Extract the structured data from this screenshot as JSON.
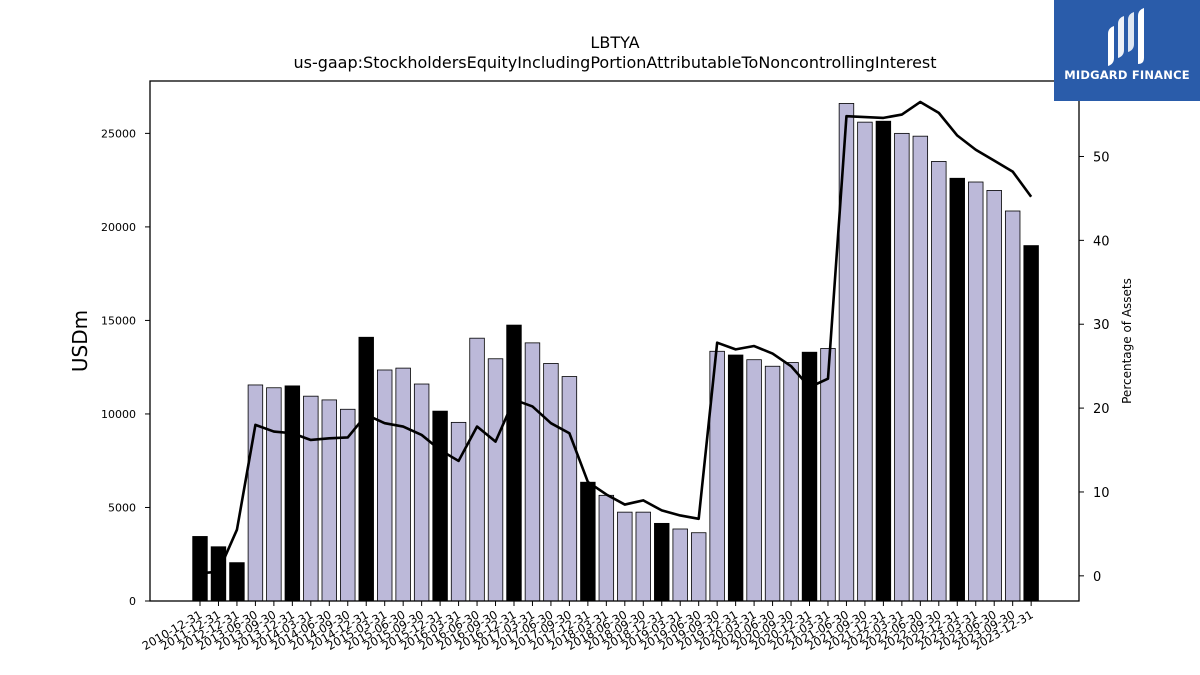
{
  "chart_data": {
    "type": "bar",
    "title": "LBTYA",
    "subtitle": "us-gaap:StockholdersEquityIncludingPortionAttributableToNoncontrollingInterest",
    "ylabel": "USDm",
    "y2label": "Percentage of Assets",
    "ylim": [
      0,
      27800
    ],
    "y2lim": [
      -3,
      59
    ],
    "yticks": [
      0,
      5000,
      10000,
      15000,
      20000,
      25000
    ],
    "y2ticks": [
      0,
      10,
      20,
      30,
      40,
      50
    ],
    "categories": [
      "2010-12-31",
      "2011-12-31",
      "2012-12-31",
      "2013-06-30",
      "2013-09-30",
      "2013-12-31",
      "2014-03-31",
      "2014-06-30",
      "2014-09-30",
      "2014-12-31",
      "2015-03-31",
      "2015-06-30",
      "2015-09-30",
      "2015-12-31",
      "2016-03-31",
      "2016-06-30",
      "2016-09-30",
      "2016-12-31",
      "2017-03-31",
      "2017-06-30",
      "2017-09-30",
      "2017-12-31",
      "2018-03-31",
      "2018-06-30",
      "2018-09-30",
      "2018-12-31",
      "2019-03-31",
      "2019-06-30",
      "2019-09-30",
      "2019-12-31",
      "2020-03-31",
      "2020-06-30",
      "2020-09-30",
      "2020-12-31",
      "2021-03-31",
      "2021-06-30",
      "2021-09-30",
      "2021-12-31",
      "2022-03-31",
      "2022-06-30",
      "2022-09-30",
      "2022-12-31",
      "2023-03-31",
      "2023-06-30",
      "2023-09-30",
      "2023-12-31"
    ],
    "series": [
      {
        "type": "bar",
        "axis": "left",
        "values": [
          3450,
          2900,
          2050,
          11550,
          11400,
          11500,
          10950,
          10750,
          10250,
          14100,
          12350,
          12450,
          11600,
          10150,
          9550,
          14050,
          12950,
          14750,
          13800,
          12700,
          12000,
          6350,
          5650,
          4750,
          4750,
          4150,
          3850,
          3650,
          13350,
          13150,
          12900,
          12550,
          12750,
          13300,
          13500,
          26600,
          25600,
          25650,
          25000,
          24850,
          23500,
          22600,
          22400,
          21950,
          20850,
          19000
        ],
        "highlight": [
          true,
          true,
          true,
          false,
          false,
          true,
          false,
          false,
          false,
          true,
          false,
          false,
          false,
          true,
          false,
          false,
          false,
          true,
          false,
          false,
          false,
          true,
          false,
          false,
          false,
          true,
          false,
          false,
          false,
          true,
          false,
          false,
          false,
          true,
          false,
          false,
          false,
          true,
          false,
          false,
          false,
          true,
          false,
          false,
          false,
          true
        ]
      },
      {
        "type": "line",
        "axis": "right",
        "values": [
          0.3,
          0.5,
          5.5,
          18.0,
          17.2,
          17.0,
          16.2,
          16.4,
          16.5,
          19.2,
          18.2,
          17.8,
          16.8,
          15.0,
          13.7,
          17.8,
          16.0,
          21.0,
          20.2,
          18.2,
          17.0,
          11.2,
          9.7,
          8.5,
          9.0,
          7.8,
          7.2,
          6.8,
          27.8,
          27.0,
          27.4,
          26.5,
          25.0,
          22.5,
          23.5,
          54.8,
          54.7,
          54.6,
          55.0,
          56.5,
          55.2,
          52.5,
          50.8,
          49.5,
          48.2,
          45.2
        ]
      }
    ],
    "colors": {
      "bar_fill": "#bcb9d9",
      "bar_highlight_fill": "#000000",
      "bar_edge": "#000000",
      "line": "#000000",
      "logo_bg": "#2a5caa"
    },
    "grid": false
  },
  "logo": {
    "text": "MIDGARD FINANCE",
    "icon": "midgard-logo-icon"
  }
}
